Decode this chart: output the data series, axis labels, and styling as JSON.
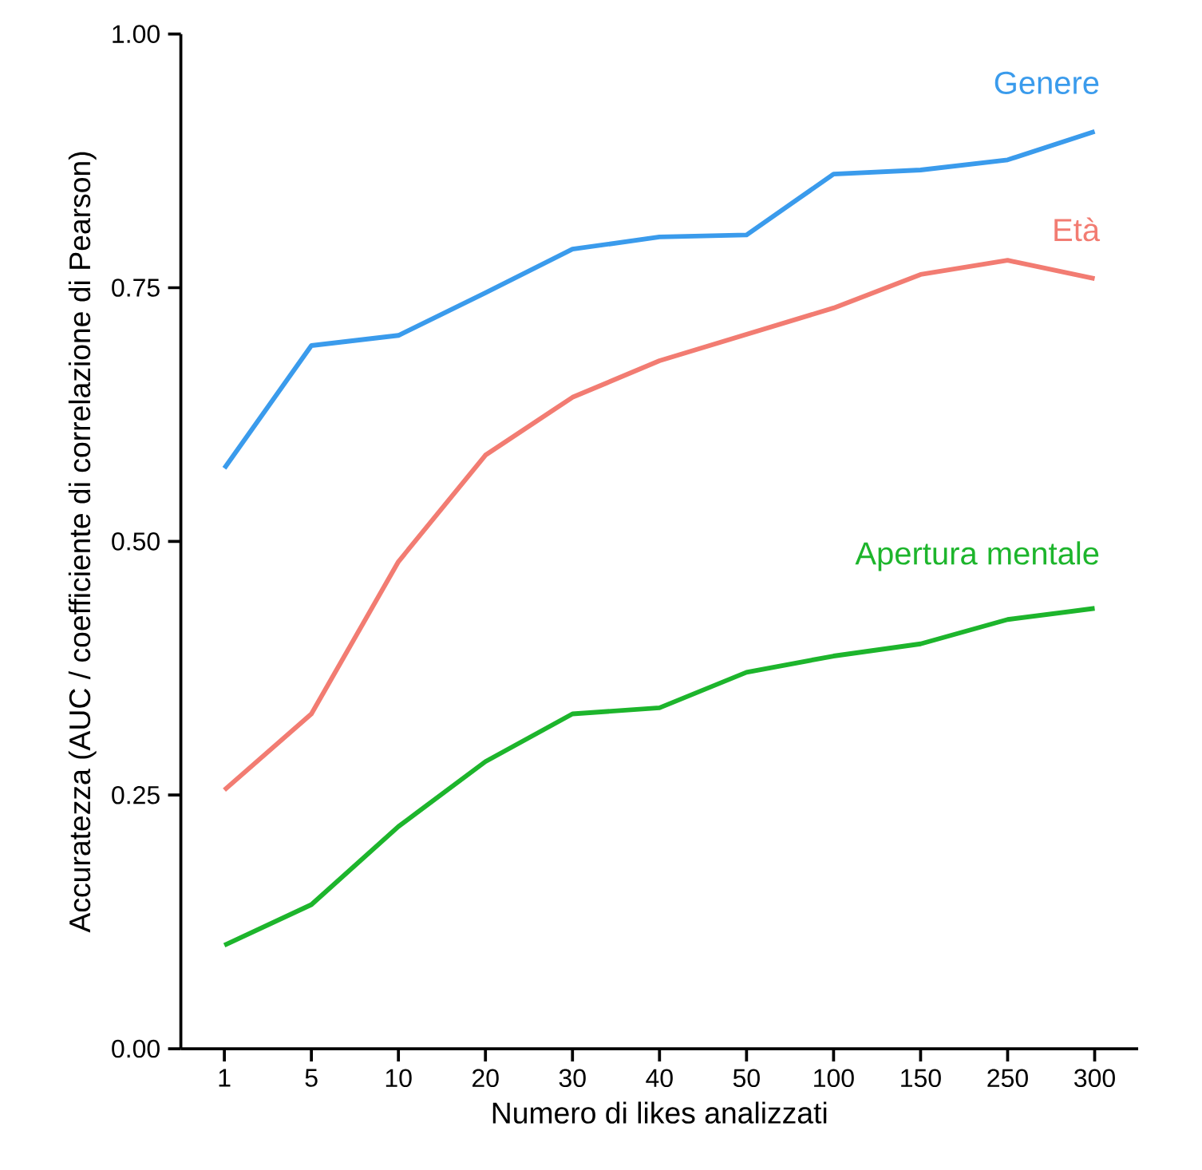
{
  "chart_data": {
    "type": "line",
    "xlabel": "Numero di likes analizzati",
    "ylabel": "Accuratezza (AUC / coefficiente di correlazione di Pearson)",
    "categories": [
      "1",
      "5",
      "10",
      "20",
      "30",
      "40",
      "50",
      "100",
      "150",
      "250",
      "300"
    ],
    "series": [
      {
        "name": "Genere",
        "color": "#3a9bec",
        "values": [
          0.572,
          0.693,
          0.703,
          0.745,
          0.788,
          0.8,
          0.802,
          0.862,
          0.866,
          0.876,
          0.904
        ]
      },
      {
        "name": "Età",
        "color": "#f27c72",
        "values": [
          0.255,
          0.33,
          0.48,
          0.585,
          0.642,
          0.678,
          0.704,
          0.73,
          0.763,
          0.777,
          0.759
        ]
      },
      {
        "name": "Apertura mentale",
        "color": "#1db52c",
        "values": [
          0.102,
          0.142,
          0.219,
          0.283,
          0.33,
          0.336,
          0.371,
          0.387,
          0.399,
          0.423,
          0.434
        ]
      }
    ],
    "ylim": [
      0,
      1
    ],
    "yticks": [
      {
        "value": 0,
        "label": "0.00"
      },
      {
        "value": 0.25,
        "label": "0.25"
      },
      {
        "value": 0.5,
        "label": "0.50"
      },
      {
        "value": 0.75,
        "label": "0.75"
      },
      {
        "value": 1,
        "label": "1.00"
      }
    ],
    "grid": false,
    "legend": false,
    "marker": "none",
    "line_style": "solid"
  }
}
